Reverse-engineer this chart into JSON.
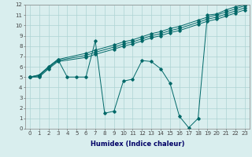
{
  "title": "",
  "xlabel": "Humidex (Indice chaleur)",
  "xlim": [
    -0.5,
    23.5
  ],
  "ylim": [
    0,
    12
  ],
  "xticks": [
    0,
    1,
    2,
    3,
    4,
    5,
    6,
    7,
    8,
    9,
    10,
    11,
    12,
    13,
    14,
    15,
    16,
    17,
    18,
    19,
    20,
    21,
    22,
    23
  ],
  "yticks": [
    0,
    1,
    2,
    3,
    4,
    5,
    6,
    7,
    8,
    9,
    10,
    11,
    12
  ],
  "background_color": "#d9eeee",
  "grid_color": "#add4d4",
  "line_color": "#006868",
  "curve_x": [
    0,
    1,
    2,
    3,
    4,
    5,
    6,
    7,
    8,
    9,
    10,
    11,
    12,
    13,
    14,
    15,
    16,
    17,
    18,
    19,
    20,
    21,
    22,
    23
  ],
  "curve_y": [
    5.0,
    5.2,
    6.0,
    6.7,
    5.0,
    5.0,
    5.0,
    8.5,
    1.5,
    1.7,
    4.6,
    4.8,
    6.6,
    6.5,
    5.8,
    4.4,
    1.2,
    0.1,
    1.0,
    11.0,
    11.1,
    11.5,
    11.8,
    12.0
  ],
  "line1_x": [
    0,
    1,
    2,
    3,
    6,
    7,
    9,
    10,
    11,
    12,
    13,
    14,
    15,
    16,
    18,
    19,
    20,
    21,
    22,
    23
  ],
  "line1_y": [
    5.0,
    5.2,
    6.0,
    6.7,
    7.3,
    7.6,
    8.1,
    8.4,
    8.6,
    8.9,
    9.2,
    9.4,
    9.7,
    9.9,
    10.5,
    10.8,
    11.0,
    11.3,
    11.6,
    11.9
  ],
  "line2_x": [
    0,
    1,
    2,
    3,
    6,
    7,
    9,
    10,
    11,
    12,
    13,
    14,
    15,
    16,
    18,
    19,
    20,
    21,
    22,
    23
  ],
  "line2_y": [
    5.0,
    5.1,
    5.9,
    6.6,
    7.1,
    7.4,
    7.9,
    8.2,
    8.4,
    8.7,
    9.0,
    9.2,
    9.5,
    9.7,
    10.3,
    10.6,
    10.8,
    11.1,
    11.4,
    11.7
  ],
  "line3_x": [
    0,
    1,
    2,
    3,
    6,
    7,
    9,
    10,
    11,
    12,
    13,
    14,
    15,
    16,
    18,
    19,
    20,
    21,
    22,
    23
  ],
  "line3_y": [
    5.0,
    5.0,
    5.8,
    6.5,
    6.9,
    7.2,
    7.7,
    8.0,
    8.2,
    8.5,
    8.8,
    9.0,
    9.3,
    9.5,
    10.1,
    10.4,
    10.6,
    10.9,
    11.2,
    11.5
  ],
  "xlabel_color": "#000066",
  "xlabel_fontsize": 6.0,
  "tick_fontsize": 5.0,
  "figsize": [
    3.2,
    2.0
  ],
  "dpi": 100
}
